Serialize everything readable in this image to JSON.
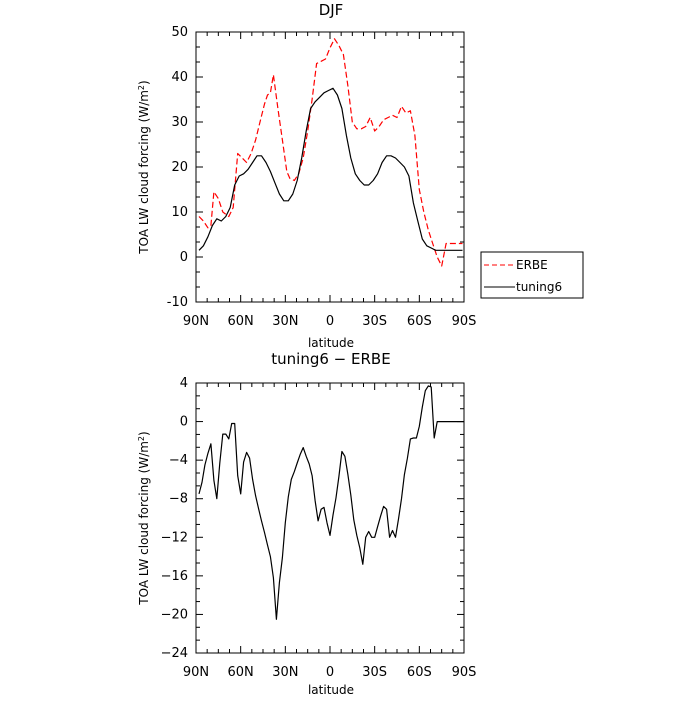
{
  "chart_data": [
    {
      "type": "line",
      "title": "DJF",
      "xlabel": "latitude",
      "ylabel": "TOA LW cloud forcing (W/m",
      "ylabel_sup": "2",
      "ylabel_end": ")",
      "xlim": [
        -90,
        90
      ],
      "ylim": [
        -10,
        50
      ],
      "xticks": [
        -90,
        -60,
        -30,
        0,
        30,
        60,
        90
      ],
      "xtick_labels": [
        "90N",
        "60N",
        "30N",
        "0",
        "30S",
        "60S",
        "90S"
      ],
      "yticks": [
        -10,
        0,
        10,
        20,
        30,
        40,
        50
      ],
      "ytick_labels": [
        "-10",
        "0",
        "10",
        "20",
        "30",
        "40",
        "50"
      ],
      "legend_position": "outside-right",
      "series": [
        {
          "name": "ERBE",
          "color": "#ff0000",
          "dash": "dashed",
          "x": [
            -88,
            -85,
            -82,
            -80,
            -78,
            -75,
            -72,
            -70,
            -68,
            -65,
            -62,
            -59,
            -56,
            -53,
            -50,
            -47,
            -44,
            -42,
            -40,
            -38,
            -35,
            -32,
            -29,
            -27,
            -24,
            -21,
            -18,
            -15,
            -12,
            -9,
            -6,
            -3,
            0,
            3,
            6,
            9,
            12,
            15,
            18,
            21,
            24,
            27,
            30,
            33,
            36,
            39,
            42,
            45,
            48,
            51,
            54,
            57,
            60,
            63,
            66,
            69,
            72,
            75,
            78,
            81,
            84,
            87,
            89
          ],
          "y": [
            9,
            8,
            6.5,
            7,
            14.5,
            13,
            10,
            9.5,
            9,
            11,
            23,
            22,
            21,
            23,
            26,
            30,
            34,
            36,
            36.5,
            40.5,
            33,
            26,
            19,
            17.5,
            17,
            18.5,
            22,
            28,
            35,
            43,
            43.5,
            44,
            46.5,
            48.5,
            47,
            45,
            38,
            30,
            28.5,
            28.5,
            29,
            31,
            28,
            29,
            30.5,
            31,
            31.5,
            31,
            33.5,
            32,
            32.5,
            27,
            15,
            10,
            6,
            3,
            0,
            -2,
            3,
            3,
            3,
            3,
            3
          ]
        },
        {
          "name": "tuning6",
          "color": "#000000",
          "dash": "solid",
          "x": [
            -88,
            -85,
            -82,
            -79,
            -76,
            -73,
            -70,
            -67,
            -64,
            -61,
            -58,
            -55,
            -52,
            -49,
            -46,
            -43,
            -40,
            -37,
            -34,
            -31,
            -28,
            -25,
            -22,
            -19,
            -16,
            -13,
            -10,
            -7,
            -4,
            -1,
            2,
            5,
            8,
            11,
            14,
            17,
            20,
            23,
            26,
            29,
            32,
            35,
            38,
            41,
            44,
            47,
            50,
            53,
            56,
            59,
            62,
            65,
            68,
            71,
            74,
            77,
            80,
            83,
            86,
            89
          ],
          "y": [
            1.5,
            2.5,
            4.5,
            7,
            8.5,
            8,
            9,
            11,
            16,
            18,
            18.5,
            19.5,
            21,
            22.5,
            22.5,
            21,
            19,
            16.5,
            14,
            12.5,
            12.5,
            14,
            17,
            22,
            28,
            33,
            34.5,
            35.5,
            36.5,
            37,
            37.5,
            36,
            33,
            27,
            22,
            18.5,
            17,
            16,
            16,
            17,
            18.5,
            21,
            22.5,
            22.5,
            22,
            21,
            20,
            18,
            12,
            8,
            4,
            2.5,
            2,
            1.5,
            1.5,
            1.5,
            1.5,
            1.5,
            1.5,
            1.5
          ]
        }
      ]
    },
    {
      "type": "line",
      "title": "tuning6 − ERBE",
      "xlabel": "latitude",
      "ylabel": "TOA LW cloud forcing (W/m",
      "ylabel_sup": "2",
      "ylabel_end": ")",
      "xlim": [
        -90,
        90
      ],
      "ylim": [
        -24,
        4
      ],
      "xticks": [
        -90,
        -60,
        -30,
        0,
        30,
        60,
        90
      ],
      "xtick_labels": [
        "90N",
        "60N",
        "30N",
        "0",
        "30S",
        "60S",
        "90S"
      ],
      "yticks": [
        -24,
        -20,
        -16,
        -12,
        -8,
        -4,
        0,
        4
      ],
      "ytick_labels": [
        "−24",
        "−20",
        "−16",
        "−12",
        "−8",
        "−4",
        "0",
        "4"
      ],
      "series": [
        {
          "color": "#000000",
          "dash": "solid",
          "x": [
            -88,
            -86,
            -84,
            -82,
            -80,
            -78,
            -76,
            -74,
            -72,
            -70,
            -68,
            -66,
            -64,
            -62,
            -60,
            -58,
            -56,
            -54,
            -52,
            -50,
            -48,
            -46,
            -44,
            -42,
            -40,
            -38,
            -36,
            -34,
            -32,
            -30,
            -28,
            -26,
            -24,
            -22,
            -20,
            -18,
            -16,
            -14,
            -12,
            -10,
            -8,
            -6,
            -4,
            -2,
            0,
            2,
            4,
            6,
            8,
            10,
            12,
            14,
            16,
            18,
            20,
            22,
            24,
            26,
            28,
            30,
            32,
            34,
            36,
            38,
            40,
            42,
            44,
            46,
            48,
            50,
            52,
            54,
            56,
            58,
            60,
            62,
            64,
            66,
            68,
            70,
            72,
            74,
            76,
            78,
            80,
            82,
            84,
            86,
            88,
            90
          ],
          "y": [
            -7.5,
            -6.3,
            -4.5,
            -3.3,
            -2.3,
            -6.1,
            -8,
            -4.3,
            -1.3,
            -1.3,
            -1.8,
            -0.2,
            -0.2,
            -5.6,
            -7.5,
            -4.2,
            -3.2,
            -3.8,
            -6,
            -7.7,
            -9,
            -10.3,
            -11.5,
            -12.8,
            -14,
            -16.2,
            -20.5,
            -16.7,
            -14.1,
            -10.5,
            -7.8,
            -6,
            -5.2,
            -4.3,
            -3.4,
            -2.7,
            -3.6,
            -4.4,
            -5.6,
            -8.2,
            -10.3,
            -9.1,
            -8.9,
            -10.5,
            -11.8,
            -9.7,
            -7.9,
            -5.7,
            -3.1,
            -3.6,
            -5.5,
            -7.6,
            -10.2,
            -11.8,
            -13.1,
            -14.8,
            -12,
            -11.4,
            -12,
            -12,
            -10.9,
            -9.8,
            -8.8,
            -9.1,
            -12,
            -11.3,
            -12,
            -10.1,
            -8,
            -5.5,
            -3.8,
            -1.8,
            -1.7,
            -1.7,
            -0.5,
            1.5,
            3.2,
            3.7,
            3.6,
            -1.7,
            0,
            0,
            0,
            0,
            0,
            0,
            0,
            0,
            0,
            0
          ]
        }
      ]
    }
  ]
}
